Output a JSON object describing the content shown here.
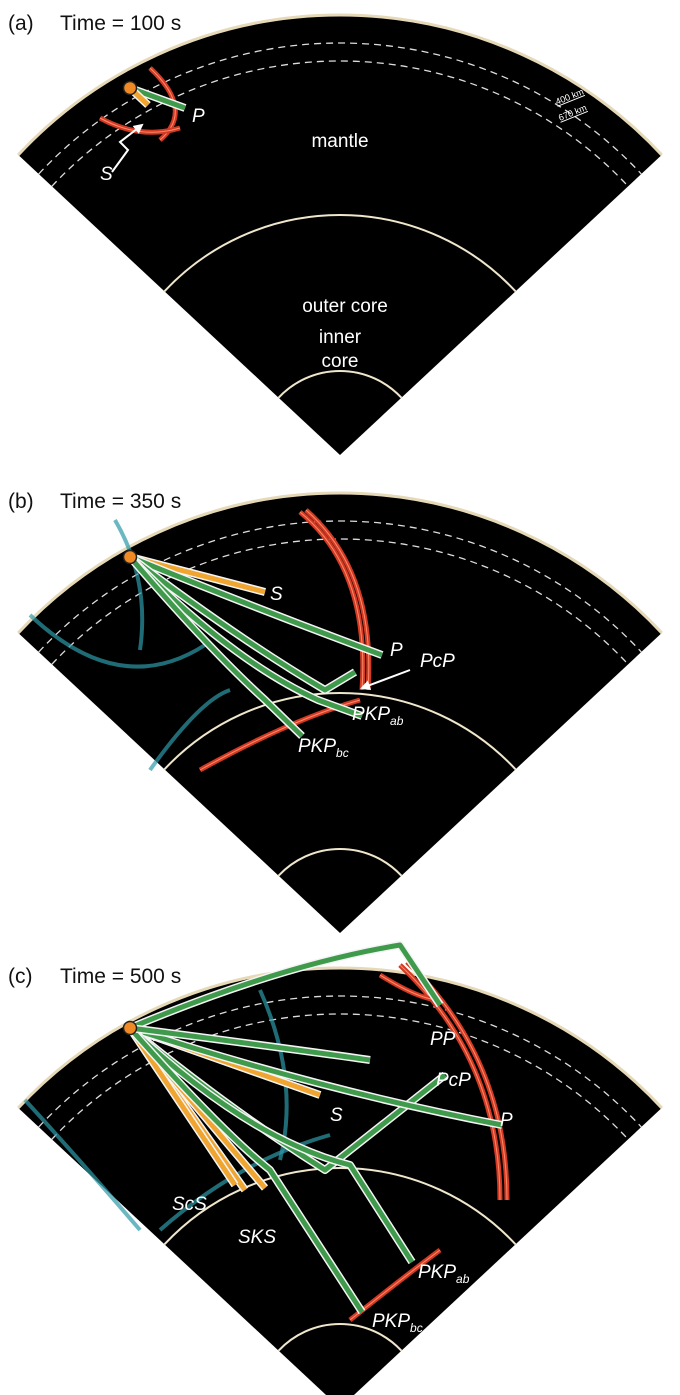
{
  "panels": [
    {
      "label": "(a)",
      "time": "Time = 100 s",
      "layers": {
        "mantle": "mantle",
        "outer_core": "outer core",
        "inner_core": [
          "inner",
          "core"
        ]
      },
      "depths": [
        "400 km",
        "670 km"
      ],
      "phases": [
        {
          "base": "P"
        },
        {
          "base": "S"
        }
      ]
    },
    {
      "label": "(b)",
      "time": "Time = 350 s",
      "phases": [
        {
          "base": "S"
        },
        {
          "base": "P"
        },
        {
          "base": "PcP"
        },
        {
          "base": "PKP",
          "sub": "ab"
        },
        {
          "base": "PKP",
          "sub": "bc"
        }
      ]
    },
    {
      "label": "(c)",
      "time": "Time = 500 s",
      "phases": [
        {
          "base": "PP"
        },
        {
          "base": "PcP"
        },
        {
          "base": "S"
        },
        {
          "base": "P"
        },
        {
          "base": "ScS"
        },
        {
          "base": "SKS"
        },
        {
          "base": "PKP",
          "sub": "ab"
        },
        {
          "base": "PKP",
          "sub": "bc"
        }
      ]
    }
  ]
}
